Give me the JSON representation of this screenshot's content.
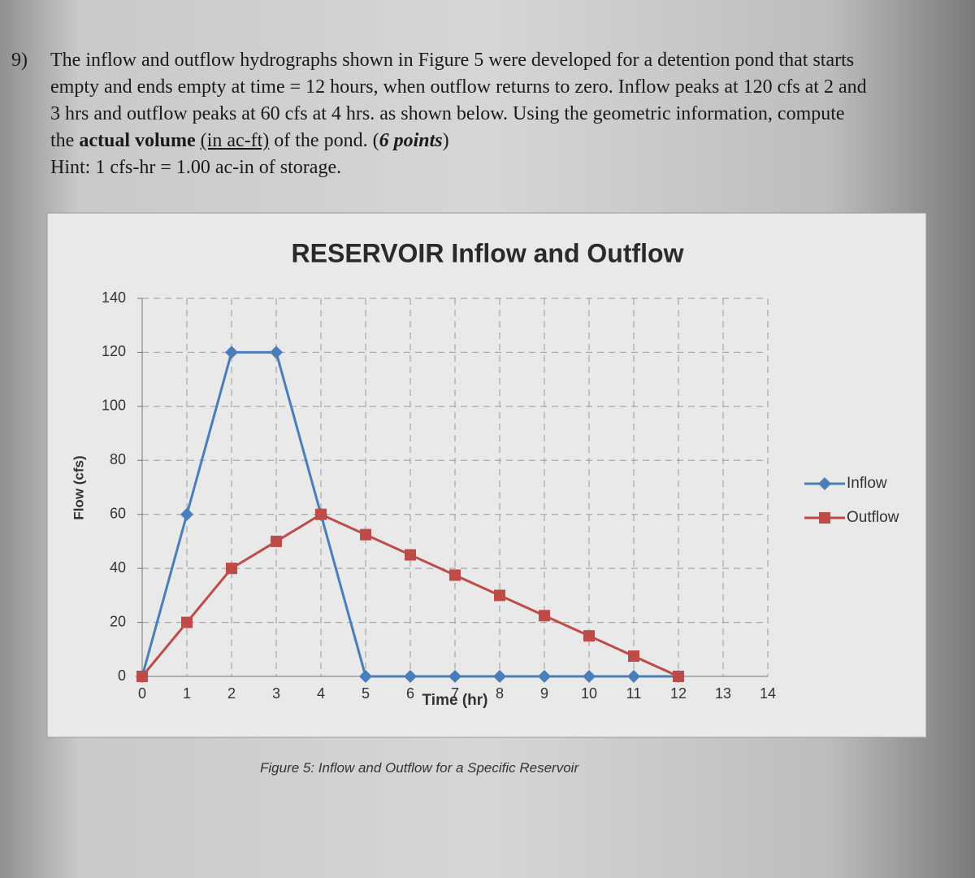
{
  "problem": {
    "number": "9)",
    "text": [
      "The inflow and outflow hydrographs shown in Figure 5 were developed for a detention pond that starts empty and ends empty at time = 12 hours, when outflow returns to zero. Inflow peaks at 120 cfs at 2 and 3 hrs and outflow peaks at 60 cfs at 4 hrs. as shown below. Using the geometric information, compute the",
      "actual volume",
      "(in ac-ft)",
      "of the pond. (",
      "6 points",
      ")"
    ],
    "hint": "Hint: 1 cfs-hr = 1.00 ac-in of storage."
  },
  "chart_data": {
    "type": "line",
    "title": "RESERVOIR Inflow and Outflow",
    "x_label": "Time (hr)",
    "y_label": "Flow (cfs)",
    "x": [
      0,
      1,
      2,
      3,
      4,
      5,
      6,
      7,
      8,
      9,
      10,
      11,
      12
    ],
    "series": [
      {
        "name": "Inflow",
        "color": "#4a7ebb",
        "marker": "diamond",
        "values": [
          0,
          60,
          120,
          120,
          60,
          0,
          0,
          0,
          0,
          0,
          0,
          0,
          0
        ]
      },
      {
        "name": "Outflow",
        "color": "#be4b48",
        "marker": "square",
        "values": [
          0,
          20,
          40,
          50,
          60,
          52.5,
          45,
          37.5,
          30,
          22.5,
          15,
          7.5,
          0
        ]
      }
    ],
    "xlim": [
      0,
      14
    ],
    "xticks": [
      0,
      1,
      2,
      3,
      4,
      5,
      6,
      7,
      8,
      9,
      10,
      11,
      12,
      13,
      14
    ],
    "ylim": [
      0,
      140
    ],
    "yticks": [
      0,
      20,
      40,
      60,
      80,
      100,
      120,
      140
    ],
    "grid": true,
    "legend": "right"
  },
  "caption": "Figure 5: Inflow and Outflow for a Specific Reservoir"
}
